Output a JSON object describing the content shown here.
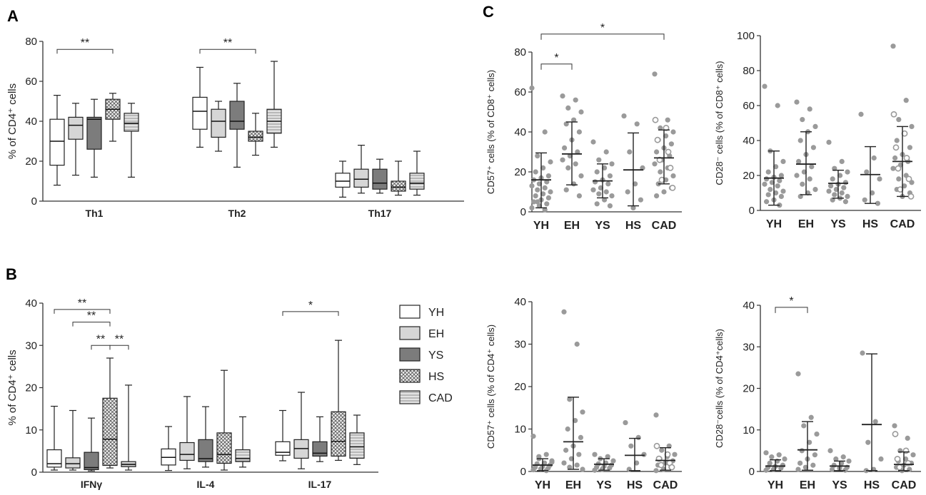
{
  "panel_labels": {
    "A": "A",
    "B": "B",
    "C": "C"
  },
  "colors": {
    "YH": "#ffffff",
    "EH": "#d6d6d6",
    "YS": "#7c7c7c",
    "HS": "#ececec",
    "CAD": "#e3e3e3",
    "axis": "#333333",
    "dot": "#9a9a9a",
    "open_dot": "#9a9a9a"
  },
  "legend": [
    {
      "label": "YH",
      "fill": "YH"
    },
    {
      "label": "EH",
      "fill": "EH"
    },
    {
      "label": "YS",
      "fill": "YS"
    },
    {
      "label": "HS",
      "fill": "HS"
    },
    {
      "label": "CAD",
      "fill": "CAD"
    }
  ],
  "chart_data": [
    {
      "id": "A",
      "type": "box",
      "ylabel": "% of CD4⁺ cells",
      "ylim": [
        0,
        80
      ],
      "yticks": [
        0,
        20,
        40,
        60,
        80
      ],
      "groups": [
        "YH",
        "EH",
        "YS",
        "HS",
        "CAD"
      ],
      "categories": [
        {
          "label": "Th1",
          "boxes": [
            {
              "group": "YH",
              "min": 8,
              "q1": 18,
              "median": 30,
              "q3": 41,
              "max": 53
            },
            {
              "group": "EH",
              "min": 13,
              "q1": 31,
              "median": 38,
              "q3": 42,
              "max": 49
            },
            {
              "group": "YS",
              "min": 12,
              "q1": 26,
              "median": 41,
              "q3": 42,
              "max": 51
            },
            {
              "group": "HS",
              "min": 30,
              "q1": 41,
              "median": 46,
              "q3": 51,
              "max": 54
            },
            {
              "group": "CAD",
              "min": 12,
              "q1": 35,
              "median": 39,
              "q3": 44,
              "max": 49
            }
          ]
        },
        {
          "label": "Th2",
          "boxes": [
            {
              "group": "YH",
              "min": 27,
              "q1": 36,
              "median": 45,
              "q3": 52,
              "max": 67
            },
            {
              "group": "EH",
              "min": 25,
              "q1": 32,
              "median": 40,
              "q3": 46,
              "max": 50
            },
            {
              "group": "YS",
              "min": 17,
              "q1": 36,
              "median": 40,
              "q3": 50,
              "max": 59
            },
            {
              "group": "HS",
              "min": 23,
              "q1": 30,
              "median": 32,
              "q3": 35,
              "max": 44
            },
            {
              "group": "CAD",
              "min": 27,
              "q1": 34,
              "median": 40,
              "q3": 46,
              "max": 70
            }
          ]
        },
        {
          "label": "Th17",
          "boxes": [
            {
              "group": "YH",
              "min": 2,
              "q1": 7,
              "median": 10,
              "q3": 14,
              "max": 20
            },
            {
              "group": "EH",
              "min": 4,
              "q1": 7,
              "median": 11,
              "q3": 16,
              "max": 28
            },
            {
              "group": "YS",
              "min": 4,
              "q1": 6,
              "median": 9,
              "q3": 16,
              "max": 21
            },
            {
              "group": "HS",
              "min": 3,
              "q1": 5,
              "median": 7,
              "q3": 10,
              "max": 20
            },
            {
              "group": "CAD",
              "min": 3,
              "q1": 6,
              "median": 9,
              "q3": 14,
              "max": 25
            }
          ]
        }
      ],
      "significance": [
        {
          "label": "**",
          "category": 0,
          "from": 0,
          "to": 3,
          "y": 76
        },
        {
          "label": "**",
          "category": 1,
          "from": 0,
          "to": 3,
          "y": 76
        }
      ]
    },
    {
      "id": "B",
      "type": "box",
      "ylabel": "% of CD4⁺ cells",
      "ylim": [
        0,
        40
      ],
      "yticks": [
        0,
        10,
        20,
        30,
        40
      ],
      "groups": [
        "YH",
        "EH",
        "YS",
        "HS",
        "CAD"
      ],
      "categories": [
        {
          "label": "IFNγ",
          "boxes": [
            {
              "group": "YH",
              "min": 0.5,
              "q1": 1.2,
              "median": 2,
              "q3": 5.3,
              "max": 15.6
            },
            {
              "group": "EH",
              "min": 0.5,
              "q1": 1,
              "median": 2,
              "q3": 3.4,
              "max": 14.6
            },
            {
              "group": "YS",
              "min": 0.3,
              "q1": 0.6,
              "median": 1.1,
              "q3": 4.7,
              "max": 12.8
            },
            {
              "group": "HS",
              "min": 1,
              "q1": 1.6,
              "median": 7.8,
              "q3": 17.5,
              "max": 27
            },
            {
              "group": "CAD",
              "min": 0.5,
              "q1": 1.3,
              "median": 1.8,
              "q3": 2.5,
              "max": 20.6
            }
          ]
        },
        {
          "label": "IL-4",
          "boxes": [
            {
              "group": "YH",
              "min": 0.4,
              "q1": 1.7,
              "median": 3.5,
              "q3": 5.5,
              "max": 10.8
            },
            {
              "group": "EH",
              "min": 0.8,
              "q1": 2.8,
              "median": 4.2,
              "q3": 7,
              "max": 17.9
            },
            {
              "group": "YS",
              "min": 1.2,
              "q1": 2.5,
              "median": 3.2,
              "q3": 7.7,
              "max": 15.5
            },
            {
              "group": "HS",
              "min": 0.5,
              "q1": 2.1,
              "median": 4.2,
              "q3": 9.3,
              "max": 24.1
            },
            {
              "group": "CAD",
              "min": 1.2,
              "q1": 2.5,
              "median": 3.2,
              "q3": 5.3,
              "max": 13.1
            }
          ]
        },
        {
          "label": "IL-17",
          "boxes": [
            {
              "group": "YH",
              "min": 2.7,
              "q1": 4,
              "median": 4.7,
              "q3": 7.2,
              "max": 14.6
            },
            {
              "group": "EH",
              "min": 0.8,
              "q1": 3.3,
              "median": 5.6,
              "q3": 7.7,
              "max": 18.9
            },
            {
              "group": "YS",
              "min": 2.5,
              "q1": 3.8,
              "median": 4.5,
              "q3": 7.2,
              "max": 13.1
            },
            {
              "group": "HS",
              "min": 2.8,
              "q1": 3.8,
              "median": 7.3,
              "q3": 14.3,
              "max": 31.2
            },
            {
              "group": "CAD",
              "min": 1.8,
              "q1": 3.3,
              "median": 6,
              "q3": 9.3,
              "max": 13.5
            }
          ]
        }
      ],
      "significance": [
        {
          "label": "**",
          "category": 0,
          "from": 0,
          "to": 3,
          "y": 38.5
        },
        {
          "label": "**",
          "category": 0,
          "from": 1,
          "to": 3,
          "y": 35.5
        },
        {
          "label": "**",
          "category": 0,
          "from": 2,
          "to": 3,
          "y": 30
        },
        {
          "label": "**",
          "category": 0,
          "from": 3,
          "to": 4,
          "y": 30
        },
        {
          "label": "*",
          "category": 2,
          "from": 0,
          "to": 3,
          "y": 38
        }
      ]
    },
    {
      "id": "C1",
      "type": "scatter",
      "ylabel": "CD57⁺ cells (% of CD8⁺ cells)",
      "ylim": [
        0,
        80
      ],
      "yticks": [
        0,
        20,
        40,
        60,
        80
      ],
      "categories": [
        "YH",
        "EH",
        "YS",
        "HS",
        "CAD"
      ],
      "stats": [
        {
          "mean": 16,
          "low": 2,
          "high": 29.5
        },
        {
          "mean": 29,
          "low": 13.5,
          "high": 45
        },
        {
          "mean": 15.5,
          "low": 7,
          "high": 24
        },
        {
          "mean": 21,
          "low": 3,
          "high": 39.5
        },
        {
          "mean": 27,
          "low": 14,
          "high": 41
        }
      ],
      "points": [
        [
          62,
          40,
          28,
          25,
          22,
          20,
          18,
          17,
          16,
          15,
          14,
          13,
          12,
          11,
          10,
          9,
          8,
          7,
          6,
          5,
          4,
          3,
          2,
          1,
          5
        ],
        [
          58,
          56,
          52,
          50,
          46,
          44,
          40,
          36,
          32,
          30,
          28,
          26,
          24,
          22,
          18,
          14,
          11,
          8
        ],
        [
          35,
          30,
          26,
          24,
          22,
          20,
          18,
          16,
          15,
          14,
          12,
          11,
          10,
          9,
          8,
          6,
          4,
          3
        ],
        [
          48,
          44,
          30,
          22,
          14,
          10,
          6,
          2
        ],
        [
          69,
          46,
          42,
          40,
          38,
          36,
          34,
          32,
          30,
          28,
          26,
          24,
          22,
          20,
          18,
          16,
          14,
          12,
          10,
          8
        ]
      ],
      "open_points": [
        [],
        [],
        [],
        [],
        [
          46,
          42,
          36,
          30,
          26,
          22,
          16,
          12
        ]
      ],
      "significance": [
        {
          "label": "*",
          "from": 0,
          "to": 1,
          "y": 74
        },
        {
          "label": "*",
          "from": 0,
          "to": 4,
          "y": 89
        }
      ]
    },
    {
      "id": "C2",
      "type": "scatter",
      "ylabel": "CD28⁻ cells (% of CD8⁺ cells)",
      "ylim": [
        0,
        100
      ],
      "yticks": [
        0,
        20,
        40,
        60,
        80,
        100
      ],
      "categories": [
        "YH",
        "EH",
        "YS",
        "HS",
        "CAD"
      ],
      "stats": [
        {
          "mean": 18.5,
          "low": 3,
          "high": 34
        },
        {
          "mean": 26.5,
          "low": 9,
          "high": 45
        },
        {
          "mean": 15.5,
          "low": 7,
          "high": 23
        },
        {
          "mean": 20.5,
          "low": 4,
          "high": 36.5
        },
        {
          "mean": 28,
          "low": 8,
          "high": 48
        }
      ],
      "points": [
        [
          71,
          60,
          34,
          28,
          25,
          22,
          20,
          19,
          18,
          17,
          16,
          15,
          14,
          12,
          11,
          10,
          9,
          8,
          6,
          5,
          3
        ],
        [
          62,
          58,
          52,
          48,
          45,
          40,
          36,
          32,
          28,
          25,
          22,
          20,
          18,
          15,
          12,
          10,
          8
        ],
        [
          39,
          28,
          24,
          22,
          20,
          18,
          16,
          15,
          14,
          13,
          12,
          11,
          10,
          9,
          8,
          7,
          6,
          5
        ],
        [
          55,
          30,
          22,
          18,
          10,
          6,
          4
        ],
        [
          94,
          63,
          52,
          48,
          44,
          40,
          36,
          32,
          30,
          28,
          26,
          24,
          20,
          18,
          16,
          14,
          12,
          10,
          8
        ]
      ],
      "open_points": [
        [],
        [],
        [],
        [],
        [
          55,
          44,
          36,
          30,
          24,
          18,
          12,
          8
        ]
      ],
      "significance": []
    },
    {
      "id": "C3",
      "type": "scatter",
      "ylabel": "CD57⁺ cells (% of CD4⁺ cells)",
      "ylim": [
        0,
        40
      ],
      "yticks": [
        0,
        10,
        20,
        30,
        40
      ],
      "categories": [
        "YH",
        "EH",
        "YS",
        "HS",
        "CAD"
      ],
      "stats": [
        {
          "mean": 1.5,
          "low": 0.2,
          "high": 3
        },
        {
          "mean": 7,
          "low": 0.5,
          "high": 17.5
        },
        {
          "mean": 1.7,
          "low": 0.3,
          "high": 3
        },
        {
          "mean": 3.8,
          "low": 0.2,
          "high": 7.8
        },
        {
          "mean": 2.6,
          "low": 0.3,
          "high": 5.6
        }
      ],
      "points": [
        [
          8.3,
          4,
          3,
          2.5,
          2,
          1.8,
          1.5,
          1.2,
          1,
          0.8,
          0.6,
          0.4,
          0.2,
          3.5,
          2.2
        ],
        [
          37.6,
          30,
          17,
          14,
          12,
          10,
          8,
          6,
          5,
          4,
          3,
          2,
          1.5,
          1,
          0.5
        ],
        [
          4,
          3.5,
          3,
          2.5,
          2,
          1.8,
          1.5,
          1.2,
          1,
          0.8,
          0.5,
          0.3
        ],
        [
          11.5,
          8,
          6,
          4,
          2,
          0.5
        ],
        [
          13.3,
          6,
          5,
          4,
          3.5,
          3,
          2.5,
          2,
          1.5,
          1,
          0.5,
          0.2
        ]
      ],
      "open_points": [
        [],
        [],
        [],
        [],
        [
          6,
          4,
          3,
          2,
          1.5,
          1
        ]
      ],
      "significance": []
    },
    {
      "id": "C4",
      "type": "scatter",
      "ylabel": "CD28⁻cells (% of CD4⁺cells)",
      "ylim": [
        0,
        40
      ],
      "yticks": [
        0,
        10,
        20,
        30,
        40
      ],
      "categories": [
        "YH",
        "EH",
        "YS",
        "HS",
        "CAD"
      ],
      "stats": [
        {
          "mean": 1.3,
          "low": 0.2,
          "high": 2.8
        },
        {
          "mean": 5.2,
          "low": 0.3,
          "high": 12
        },
        {
          "mean": 1.3,
          "low": 0.2,
          "high": 2.5
        },
        {
          "mean": 11.3,
          "low": 0.2,
          "high": 28.3
        },
        {
          "mean": 1.7,
          "low": 0.2,
          "high": 4.7
        }
      ],
      "points": [
        [
          4.5,
          4,
          3.5,
          3,
          2.5,
          2,
          1.5,
          1.2,
          1,
          0.8,
          0.5,
          0.3
        ],
        [
          23.5,
          13,
          11,
          9,
          7,
          5,
          4,
          3,
          2,
          1.5,
          1,
          0.5
        ],
        [
          5,
          3.5,
          3,
          2.5,
          2,
          1.5,
          1,
          0.8,
          0.5,
          0.3
        ],
        [
          28.5,
          12,
          7,
          3,
          0.5,
          0.2
        ],
        [
          11,
          8,
          5,
          4,
          3,
          2.5,
          2,
          1.5,
          1,
          0.5,
          0.2
        ]
      ],
      "open_points": [
        [],
        [],
        [],
        [],
        [
          9,
          5,
          3,
          2,
          1
        ]
      ],
      "significance": [
        {
          "label": "*",
          "from": 0,
          "to": 1,
          "y": 39.5
        }
      ]
    }
  ]
}
